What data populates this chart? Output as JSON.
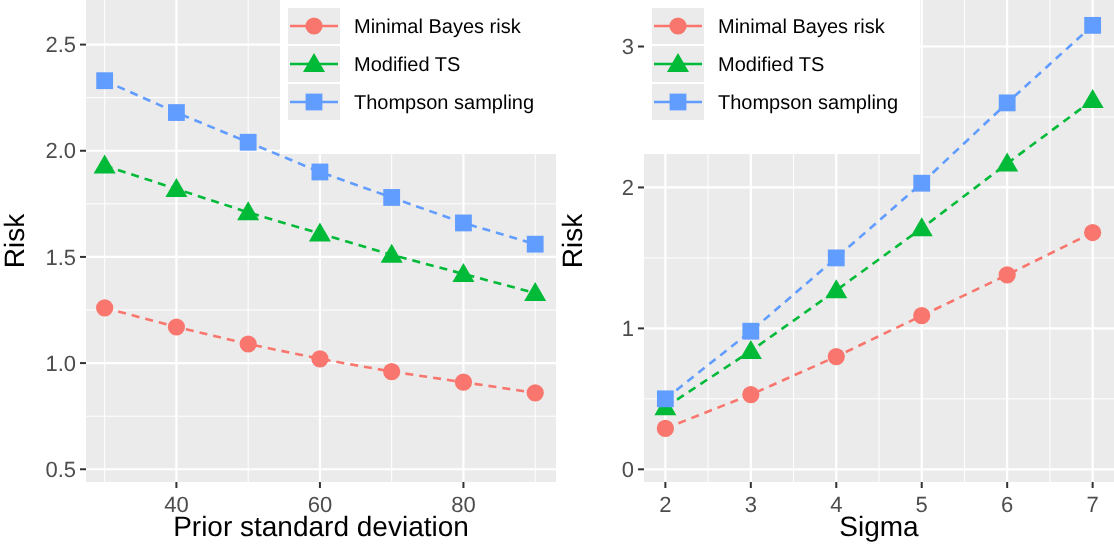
{
  "chart_data": [
    {
      "type": "line",
      "xlabel": "Prior standard deviation",
      "ylabel": "Risk",
      "x": [
        30,
        40,
        50,
        60,
        70,
        80,
        90
      ],
      "xlim": [
        27.4,
        92.9
      ],
      "xticks": [
        40,
        60,
        80
      ],
      "ylim": [
        0.44,
        2.71
      ],
      "yticks": [
        0.5,
        {
          "value": 1,
          "label": "1.0"
        },
        1.5,
        {
          "value": 2,
          "label": "2.0"
        },
        2.5
      ],
      "grid": true,
      "legend": "top right",
      "line_style": "dashed",
      "series": [
        {
          "name": "Minimal Bayes risk",
          "color": "#f8766d",
          "marker": "circle",
          "values": [
            1.26,
            1.17,
            1.09,
            1.02,
            0.96,
            0.91,
            0.86
          ]
        },
        {
          "name": "Modified TS",
          "color": "#00ba38",
          "marker": "triangle",
          "values": [
            1.93,
            1.82,
            1.71,
            1.61,
            1.51,
            1.42,
            1.33
          ]
        },
        {
          "name": "Thompson sampling",
          "color": "#619cff",
          "marker": "square",
          "values": [
            2.33,
            2.18,
            2.04,
            1.9,
            1.78,
            1.66,
            1.56
          ]
        }
      ]
    },
    {
      "type": "line",
      "xlabel": "Sigma",
      "ylabel": "Risk",
      "x": [
        2,
        3,
        4,
        5,
        6,
        7
      ],
      "xlim": [
        1.75,
        7.25
      ],
      "xticks": [
        2,
        3,
        4,
        5,
        6,
        7
      ],
      "ylim": [
        -0.09,
        3.33
      ],
      "yticks": [
        0,
        1,
        2,
        3
      ],
      "grid": true,
      "legend": "top left",
      "line_style": "dashed",
      "series": [
        {
          "name": "Minimal Bayes risk",
          "color": "#f8766d",
          "marker": "circle",
          "values": [
            0.29,
            0.53,
            0.8,
            1.09,
            1.38,
            1.68
          ]
        },
        {
          "name": "Modified TS",
          "color": "#00ba38",
          "marker": "triangle",
          "values": [
            0.44,
            0.84,
            1.27,
            1.71,
            2.17,
            2.62
          ]
        },
        {
          "name": "Thompson sampling",
          "color": "#619cff",
          "marker": "square",
          "values": [
            0.5,
            0.98,
            1.5,
            2.03,
            2.6,
            3.15
          ]
        }
      ]
    }
  ]
}
